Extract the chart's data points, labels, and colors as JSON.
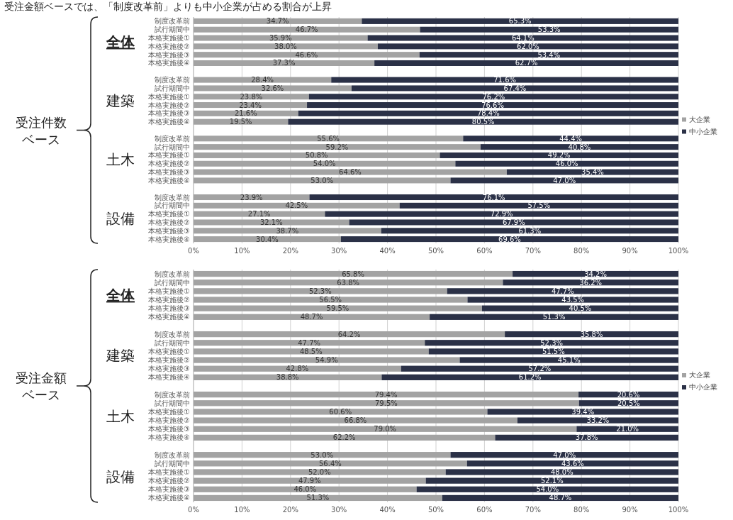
{
  "chart_data": [
    {
      "type": "bar",
      "orientation": "horizontal",
      "stacked": true,
      "title": "受注金額ベースでは、「制度改革前」よりも中小企業が占める割合が上昇",
      "ylabel": "受注件数ベース",
      "annotations": [
        "全体",
        "建築",
        "土木",
        "設備"
      ],
      "categories": [
        "制度改革前",
        "試行期間中",
        "本格実施後①",
        "本格実施後②",
        "本格実施後③",
        "本格実施後④",
        "制度改革前",
        "試行期間中",
        "本格実施後①",
        "本格実施後②",
        "本格実施後③",
        "本格実施後④",
        "制度改革前",
        "試行期間中",
        "本格実施後①",
        "本格実施後②",
        "本格実施後③",
        "本格実施後④",
        "制度改革前",
        "試行期間中",
        "本格実施後①",
        "本格実施後②",
        "本格実施後③",
        "本格実施後④"
      ],
      "series": [
        {
          "name": "大企業",
          "color": "#a3a3a3",
          "values": [
            34.7,
            46.7,
            35.9,
            38.0,
            46.6,
            37.3,
            28.4,
            32.6,
            23.8,
            23.4,
            21.6,
            19.5,
            55.6,
            59.2,
            50.8,
            54.0,
            64.6,
            53.0,
            23.9,
            42.5,
            27.1,
            32.1,
            38.7,
            30.4
          ],
          "value_labels": [
            "34.7%",
            "46.7%",
            "35.9%",
            "38.0%",
            "46.6%",
            "37.3%",
            "28.4%",
            "32.6%",
            "23.8%",
            "23.4%",
            "21.6%",
            "19.5%",
            "55.6%",
            "59.2%",
            "50.8%",
            "54.0%",
            "64.6%",
            "53.0%",
            "23.9%",
            "42.5%",
            "27.1%",
            "32.1%",
            "38.7%",
            "30.4%"
          ]
        },
        {
          "name": "中小企業",
          "color": "#2b3147",
          "values": [
            65.3,
            53.3,
            64.1,
            62.0,
            53.4,
            62.7,
            71.6,
            67.4,
            76.2,
            76.6,
            78.4,
            80.5,
            44.4,
            40.8,
            49.2,
            46.0,
            35.4,
            47.0,
            76.1,
            57.5,
            72.9,
            67.9,
            61.3,
            69.6
          ],
          "value_labels": [
            "65.3%",
            "53.3%",
            "64.1%",
            "62.0%",
            "53.4%",
            "62.7%",
            "71.6%",
            "67.4%",
            "76.2%",
            "76.6%",
            "78.4%",
            "80.5%",
            "44.4%",
            "40.8%",
            "49.2%",
            "46.0%",
            "35.4%",
            "47.0%",
            "76.1%",
            "57.5%",
            "72.9%",
            "67.9%",
            "61.3%",
            "69.6%"
          ]
        }
      ],
      "xlim": [
        0,
        100
      ],
      "xticks": [
        {
          "value": 0,
          "label": "0%"
        },
        {
          "value": 10,
          "label": "10%"
        },
        {
          "value": 20,
          "label": "20%"
        },
        {
          "value": 30,
          "label": "30%"
        },
        {
          "value": 40,
          "label": "40%"
        },
        {
          "value": 50,
          "label": "50%"
        },
        {
          "value": 60,
          "label": "60%"
        },
        {
          "value": 70,
          "label": "70%"
        },
        {
          "value": 80,
          "label": "80%"
        },
        {
          "value": 90,
          "label": "90%"
        },
        {
          "value": 100,
          "label": "100%"
        }
      ],
      "grid": "x",
      "legend": "right"
    },
    {
      "type": "bar",
      "orientation": "horizontal",
      "stacked": true,
      "ylabel": "受注金額ベース",
      "annotations": [
        "全体",
        "建築",
        "土木",
        "設備"
      ],
      "categories": [
        "制度改革前",
        "試行期間中",
        "本格実施後①",
        "本格実施後②",
        "本格実施後③",
        "本格実施後④",
        "制度改革前",
        "試行期間中",
        "本格実施後①",
        "本格実施後②",
        "本格実施後③",
        "本格実施後④",
        "制度改革前",
        "試行期間中",
        "本格実施後①",
        "本格実施後②",
        "本格実施後③",
        "本格実施後④",
        "制度改革前",
        "試行期間中",
        "本格実施後①",
        "本格実施後②",
        "本格実施後③",
        "本格実施後④"
      ],
      "series": [
        {
          "name": "大企業",
          "color": "#a3a3a3",
          "values": [
            65.8,
            63.8,
            52.3,
            56.5,
            59.5,
            48.7,
            64.2,
            47.7,
            48.5,
            54.9,
            42.8,
            38.8,
            79.4,
            79.5,
            60.6,
            66.8,
            79.0,
            62.2,
            53.0,
            56.4,
            52.0,
            47.9,
            46.0,
            51.3
          ],
          "value_labels": [
            "65.8%",
            "63.8%",
            "52.3%",
            "56.5%",
            "59.5%",
            "48.7%",
            "64.2%",
            "47.7%",
            "48.5%",
            "54.9%",
            "42.8%",
            "38.8%",
            "79.4%",
            "79.5%",
            "60.6%",
            "66.8%",
            "79.0%",
            "62.2%",
            "53.0%",
            "56.4%",
            "52.0%",
            "47.9%",
            "46.0%",
            "51.3%"
          ]
        },
        {
          "name": "中小企業",
          "color": "#2b3147",
          "values": [
            34.2,
            36.2,
            47.7,
            43.5,
            40.5,
            51.3,
            35.8,
            52.3,
            51.5,
            45.1,
            57.2,
            61.2,
            20.6,
            20.5,
            39.4,
            33.2,
            21.0,
            37.8,
            47.0,
            43.6,
            48.0,
            52.1,
            54.0,
            48.7
          ],
          "value_labels": [
            "34.2%",
            "36.2%",
            "47.7%",
            "43.5%",
            "40.5%",
            "51.3%",
            "35.8%",
            "52.3%",
            "51.5%",
            "45.1%",
            "57.2%",
            "61.2%",
            "20.6%",
            "20.5%",
            "39.4%",
            "33.2%",
            "21.0%",
            "37.8%",
            "47.0%",
            "43.6%",
            "48.0%",
            "52.1%",
            "54.0%",
            "48.7%"
          ]
        }
      ],
      "xlim": [
        0,
        100
      ],
      "xticks": [
        {
          "value": 0,
          "label": "0%"
        },
        {
          "value": 10,
          "label": "10%"
        },
        {
          "value": 20,
          "label": "20%"
        },
        {
          "value": 30,
          "label": "30%"
        },
        {
          "value": 40,
          "label": "40%"
        },
        {
          "value": 50,
          "label": "50%"
        },
        {
          "value": 60,
          "label": "60%"
        },
        {
          "value": 70,
          "label": "70%"
        },
        {
          "value": 80,
          "label": "80%"
        },
        {
          "value": 90,
          "label": "90%"
        },
        {
          "value": 100,
          "label": "100%"
        }
      ],
      "grid": "x",
      "legend": "right"
    }
  ]
}
